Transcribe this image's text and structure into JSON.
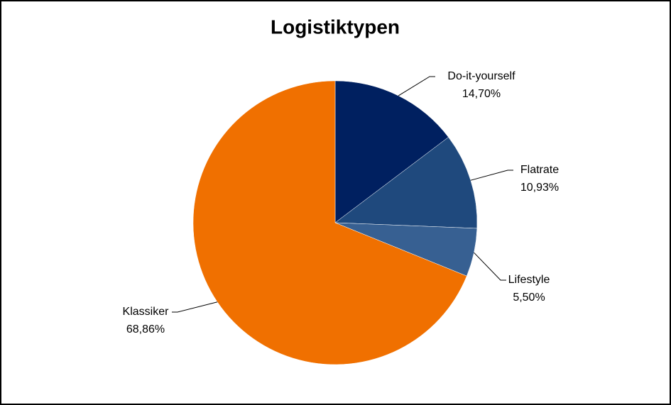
{
  "chart_data": {
    "type": "pie",
    "title": "Logistiktypen",
    "categories": [
      "Do-it-yourself",
      "Flatrate",
      "Lifestyle",
      "Klassiker"
    ],
    "values": [
      14.7,
      10.93,
      5.5,
      68.86
    ],
    "value_labels": [
      "14,70%",
      "10,93%",
      "5,50%",
      "68,86%"
    ],
    "colors": [
      "#002060",
      "#1f497d",
      "#376092",
      "#f07000"
    ]
  }
}
